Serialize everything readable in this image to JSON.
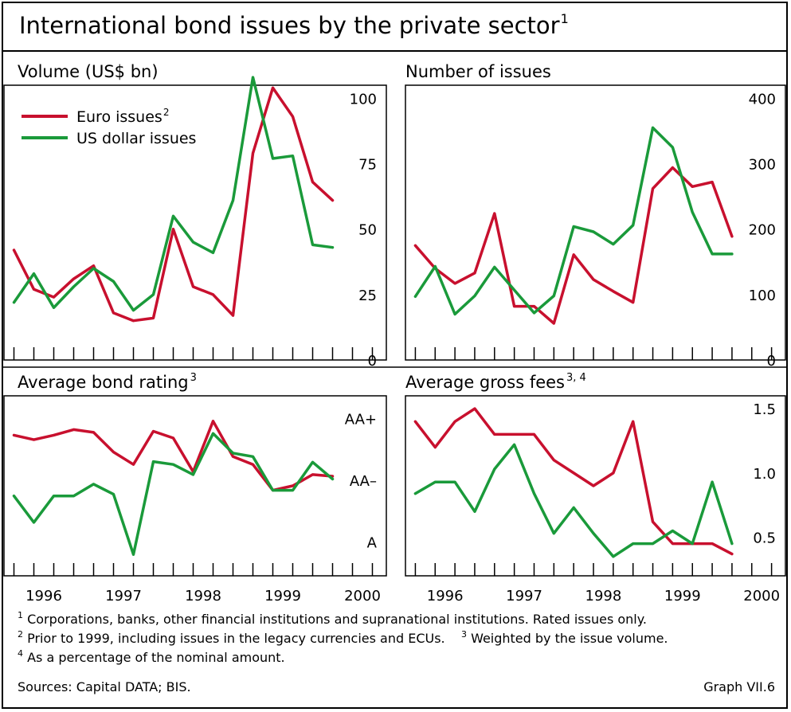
{
  "title": "International bond issues by the private sector",
  "title_note": "1",
  "colors": {
    "euro": "#c8102e",
    "usd": "#1a9a3a",
    "grid": "#000000"
  },
  "chart_data": [
    {
      "id": "volume",
      "type": "line",
      "title": "Volume (US$ bn)",
      "title_note": "",
      "ylim": [
        0,
        105
      ],
      "yticks": [
        {
          "v": 100,
          "label": "100"
        },
        {
          "v": 75,
          "label": "75"
        },
        {
          "v": 50,
          "label": "50"
        },
        {
          "v": 25,
          "label": "25"
        },
        {
          "v": 0,
          "label": "0"
        }
      ],
      "legend": {
        "items": [
          {
            "series": "euro",
            "label": "Euro issues",
            "note": "2"
          },
          {
            "series": "usd",
            "label": "US dollar issues",
            "note": ""
          }
        ]
      },
      "x": [
        1995.625,
        1995.875,
        1996.125,
        1996.375,
        1996.625,
        1996.875,
        1997.125,
        1997.375,
        1997.625,
        1997.875,
        1998.125,
        1998.375,
        1998.625,
        1998.875,
        1999.125,
        1999.375,
        1999.625,
        1999.875
      ],
      "series": [
        {
          "key": "euro",
          "name": "Euro issues",
          "values": [
            42,
            27,
            24,
            31,
            36,
            18,
            15,
            16,
            50,
            28,
            25,
            17,
            79,
            104,
            93,
            68,
            61,
            null
          ]
        },
        {
          "key": "usd",
          "name": "US dollar issues",
          "values": [
            22,
            33,
            20,
            28,
            35,
            30,
            19,
            25,
            55,
            45,
            41,
            61,
            108,
            77,
            78,
            44,
            43,
            null
          ]
        }
      ]
    },
    {
      "id": "number",
      "type": "line",
      "title": "Number of issues",
      "title_note": "",
      "ylim": [
        0,
        420
      ],
      "yticks": [
        {
          "v": 400,
          "label": "400"
        },
        {
          "v": 300,
          "label": "300"
        },
        {
          "v": 200,
          "label": "200"
        },
        {
          "v": 100,
          "label": "100"
        },
        {
          "v": 0,
          "label": "0"
        }
      ],
      "x": [
        1995.625,
        1995.875,
        1996.125,
        1996.375,
        1996.625,
        1996.875,
        1997.125,
        1997.375,
        1997.625,
        1997.875,
        1998.125,
        1998.375,
        1998.625,
        1998.875,
        1999.125,
        1999.375,
        1999.625,
        1999.875
      ],
      "series": [
        {
          "key": "euro",
          "name": "Euro issues",
          "values": [
            175,
            140,
            117,
            133,
            224,
            82,
            82,
            56,
            161,
            123,
            105,
            88,
            262,
            294,
            265,
            272,
            189,
            null
          ]
        },
        {
          "key": "usd",
          "name": "US dollar issues",
          "values": [
            97,
            143,
            70,
            98,
            142,
            107,
            72,
            98,
            204,
            196,
            177,
            206,
            355,
            325,
            226,
            162,
            162,
            null
          ]
        }
      ]
    },
    {
      "id": "rating",
      "type": "line",
      "title": "Average bond rating",
      "title_note": "3",
      "ylim": [
        0,
        3.2
      ],
      "yticks": [
        {
          "v": 2.8,
          "label": "AA+"
        },
        {
          "v": 1.7,
          "label": "AA–"
        },
        {
          "v": 0.6,
          "label": "A"
        }
      ],
      "x": [
        1995.625,
        1995.875,
        1996.125,
        1996.375,
        1996.625,
        1996.875,
        1997.125,
        1997.375,
        1997.625,
        1997.875,
        1998.125,
        1998.375,
        1998.625,
        1998.875,
        1999.125,
        1999.375,
        1999.625,
        1999.875
      ],
      "series": [
        {
          "key": "euro",
          "name": "Euro issues",
          "values": [
            2.5,
            2.42,
            2.5,
            2.6,
            2.55,
            2.2,
            1.98,
            2.57,
            2.45,
            1.85,
            2.75,
            2.12,
            1.98,
            1.52,
            1.6,
            1.8,
            1.77,
            null
          ]
        },
        {
          "key": "usd",
          "name": "US dollar issues",
          "values": [
            1.42,
            0.95,
            1.42,
            1.42,
            1.63,
            1.45,
            0.38,
            2.03,
            1.98,
            1.8,
            2.53,
            2.18,
            2.12,
            1.52,
            1.52,
            2.02,
            1.72,
            null
          ]
        }
      ]
    },
    {
      "id": "fees",
      "type": "line",
      "title": "Average gross fees",
      "title_note": "3, 4",
      "ylim": [
        0.2,
        1.6
      ],
      "yticks": [
        {
          "v": 1.5,
          "label": "1.5"
        },
        {
          "v": 1.0,
          "label": "1.0"
        },
        {
          "v": 0.5,
          "label": "0.5"
        }
      ],
      "x": [
        1995.625,
        1995.875,
        1996.125,
        1996.375,
        1996.625,
        1996.875,
        1997.125,
        1997.375,
        1997.625,
        1997.875,
        1998.125,
        1998.375,
        1998.625,
        1998.875,
        1999.125,
        1999.375,
        1999.625,
        1999.875
      ],
      "series": [
        {
          "key": "euro",
          "name": "Euro issues",
          "values": [
            1.4,
            1.2,
            1.4,
            1.5,
            1.3,
            1.3,
            1.3,
            1.1,
            1.0,
            0.9,
            1.0,
            1.4,
            0.62,
            0.45,
            0.45,
            0.45,
            0.37,
            null
          ]
        },
        {
          "key": "usd",
          "name": "US dollar issues",
          "values": [
            0.84,
            0.93,
            0.93,
            0.7,
            1.03,
            1.22,
            0.84,
            0.53,
            0.73,
            0.53,
            0.35,
            0.45,
            0.45,
            0.55,
            0.45,
            0.93,
            0.45,
            null
          ]
        }
      ]
    }
  ],
  "x_axis_labels": [
    "1996",
    "1997",
    "1998",
    "1999",
    "2000"
  ],
  "footnotes": [
    {
      "note": "1",
      "text": "Corporations, banks, other financial institutions and supranational institutions. Rated issues only."
    },
    {
      "note": "2",
      "text": "Prior to 1999, including issues in the legacy currencies and ECUs."
    },
    {
      "note": "3",
      "text": "Weighted by the issue volume."
    },
    {
      "note": "4",
      "text": "As a percentage of the nominal amount."
    }
  ],
  "sources": "Sources: Capital DATA; BIS.",
  "graph_id": "Graph VII.6"
}
